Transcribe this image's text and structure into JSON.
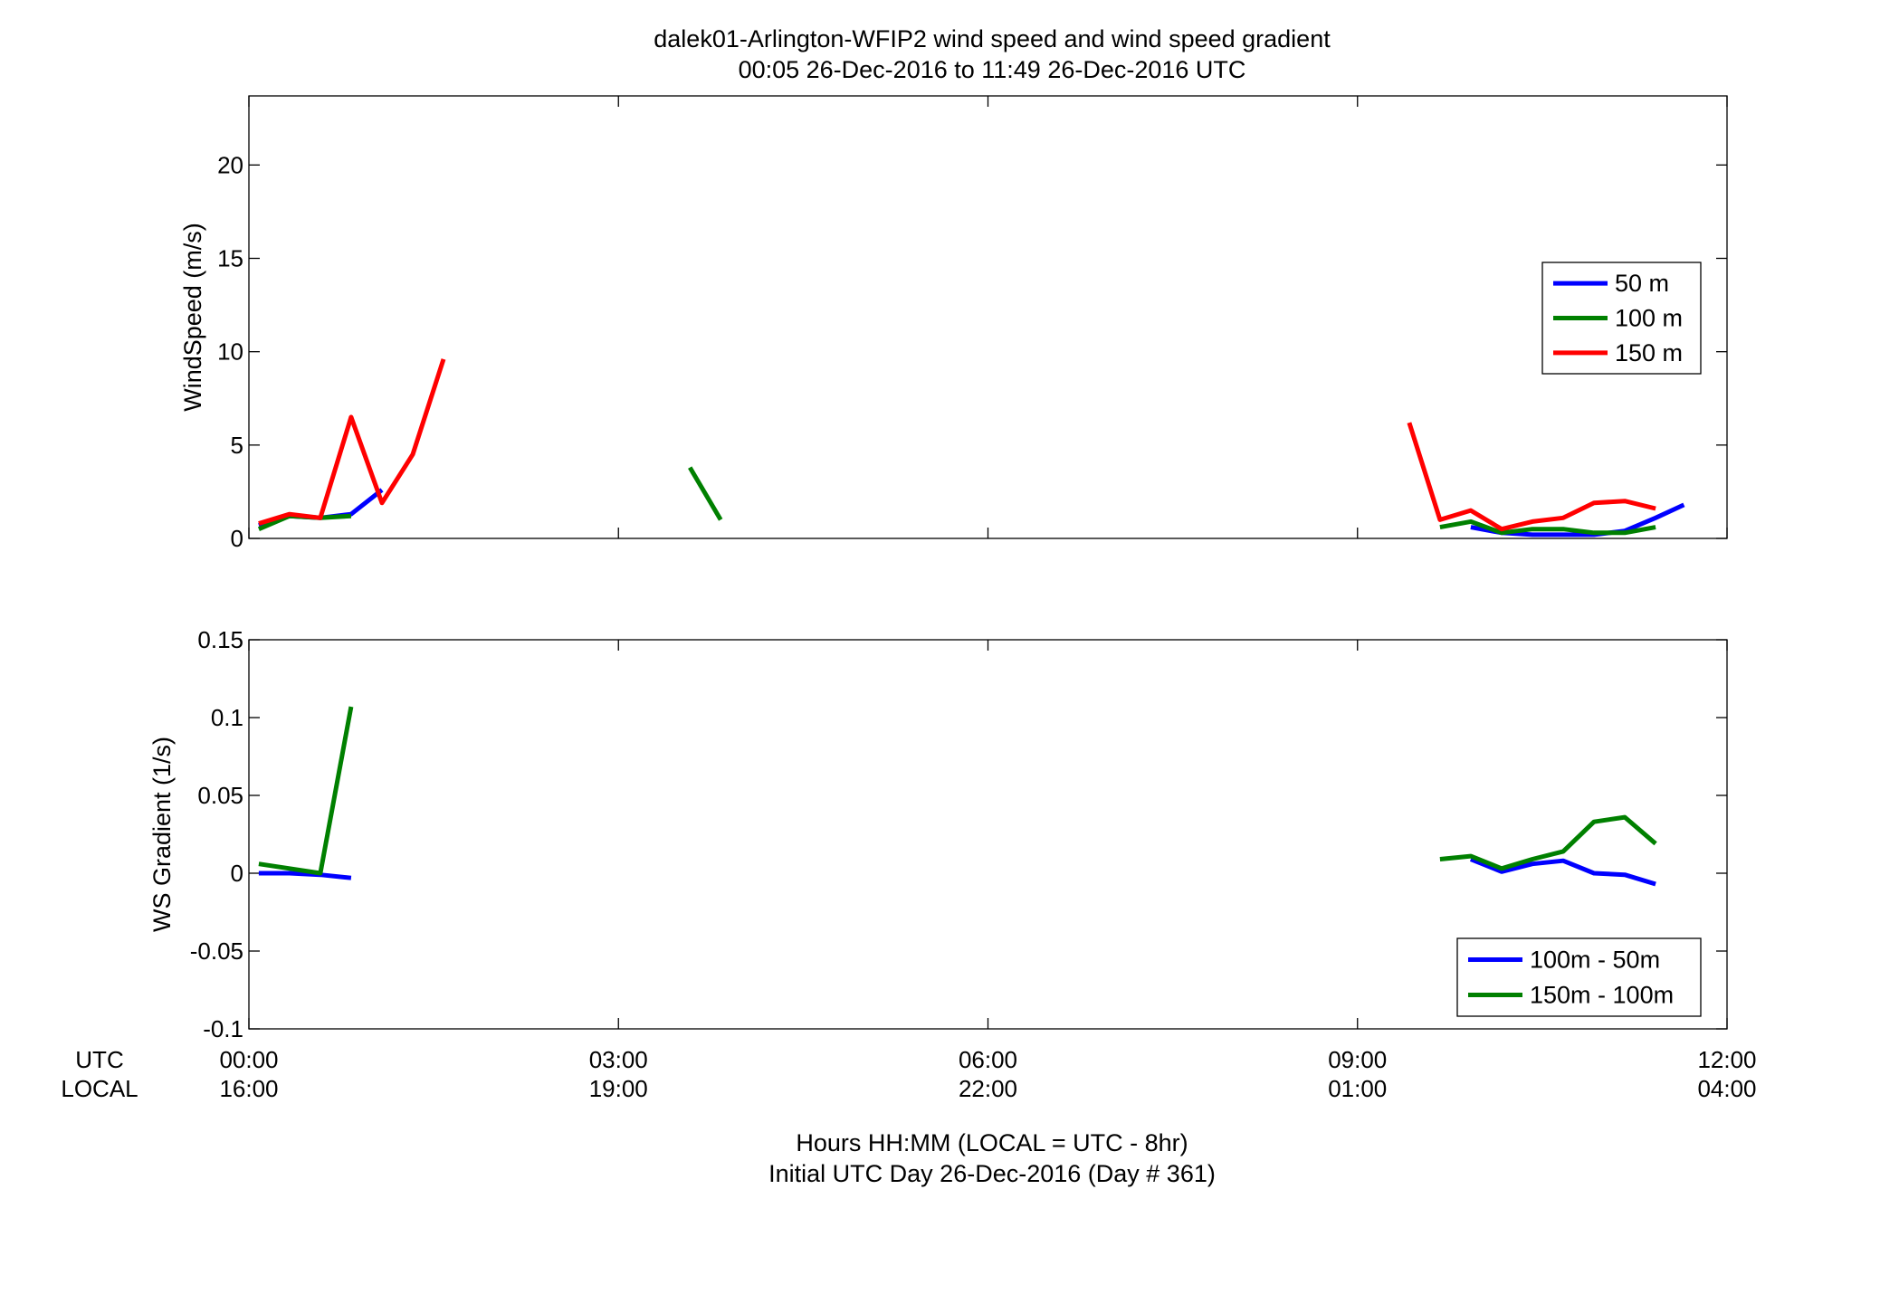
{
  "figure": {
    "title_line1": "dalek01-Arlington-WFIP2  wind speed and wind speed gradient",
    "title_line2": "00:05 26-Dec-2016 to 11:49 26-Dec-2016  UTC",
    "xlabel_line1": "Hours HH:MM  (LOCAL = UTC - 8hr)",
    "xlabel_line2": "Initial UTC Day 26-Dec-2016 (Day # 361)",
    "utc_row_label": "UTC",
    "local_row_label": "LOCAL"
  },
  "chart_data": [
    {
      "type": "line",
      "ylabel": "WindSpeed (m/s)",
      "xlim": [
        0,
        12
      ],
      "ylim": [
        0,
        23.7
      ],
      "x_ticks": [
        0,
        3,
        6,
        9,
        12
      ],
      "x_tick_labels_utc": [
        "00:00",
        "03:00",
        "06:00",
        "09:00",
        "12:00"
      ],
      "x_tick_labels_local": [
        "16:00",
        "19:00",
        "22:00",
        "01:00",
        "04:00"
      ],
      "y_ticks": [
        0,
        5,
        10,
        15,
        20
      ],
      "y_tick_labels": [
        "0",
        "5",
        "10",
        "15",
        "20"
      ],
      "grid": false,
      "legend_position": "right",
      "series": [
        {
          "name": "50 m",
          "color": "#0000ff",
          "segments": [
            [
              [
                0.08,
                0.7
              ],
              [
                0.33,
                1.2
              ],
              [
                0.58,
                1.1
              ],
              [
                0.83,
                1.3
              ],
              [
                1.08,
                2.6
              ]
            ],
            [
              [
                9.92,
                0.6
              ],
              [
                10.17,
                0.3
              ],
              [
                10.42,
                0.2
              ],
              [
                10.67,
                0.2
              ],
              [
                10.92,
                0.2
              ],
              [
                11.17,
                0.4
              ],
              [
                11.42,
                1.1
              ],
              [
                11.65,
                1.8
              ]
            ]
          ]
        },
        {
          "name": "100 m",
          "color": "#008000",
          "segments": [
            [
              [
                0.08,
                0.5
              ],
              [
                0.33,
                1.2
              ],
              [
                0.58,
                1.1
              ],
              [
                0.83,
                1.2
              ]
            ],
            [
              [
                3.58,
                3.8
              ],
              [
                3.83,
                1.0
              ]
            ],
            [
              [
                9.67,
                0.6
              ],
              [
                9.92,
                0.9
              ],
              [
                10.17,
                0.3
              ],
              [
                10.42,
                0.5
              ],
              [
                10.67,
                0.5
              ],
              [
                10.92,
                0.3
              ],
              [
                11.17,
                0.3
              ],
              [
                11.42,
                0.6
              ]
            ]
          ]
        },
        {
          "name": "150 m",
          "color": "#ff0000",
          "segments": [
            [
              [
                0.08,
                0.8
              ],
              [
                0.33,
                1.3
              ],
              [
                0.58,
                1.1
              ],
              [
                0.83,
                6.5
              ],
              [
                1.08,
                1.9
              ],
              [
                1.33,
                4.5
              ],
              [
                1.58,
                9.6
              ]
            ],
            [
              [
                9.42,
                6.2
              ],
              [
                9.67,
                1.0
              ],
              [
                9.92,
                1.5
              ],
              [
                10.17,
                0.5
              ],
              [
                10.42,
                0.9
              ],
              [
                10.67,
                1.1
              ],
              [
                10.92,
                1.9
              ],
              [
                11.17,
                2.0
              ],
              [
                11.42,
                1.6
              ]
            ]
          ]
        }
      ]
    },
    {
      "type": "line",
      "ylabel": "WS Gradient (1/s)",
      "xlim": [
        0,
        12
      ],
      "ylim": [
        -0.1,
        0.15
      ],
      "x_ticks": [
        0,
        3,
        6,
        9,
        12
      ],
      "y_ticks": [
        -0.1,
        -0.05,
        0,
        0.05,
        0.1,
        0.15
      ],
      "y_tick_labels": [
        "-0.1",
        "-0.05",
        "0",
        "0.05",
        "0.1",
        "0.15"
      ],
      "grid": false,
      "legend_position": "bottom-right",
      "series": [
        {
          "name": "100m - 50m",
          "color": "#0000ff",
          "segments": [
            [
              [
                0.08,
                0.0
              ],
              [
                0.33,
                0.0
              ],
              [
                0.58,
                -0.001
              ],
              [
                0.83,
                -0.003
              ]
            ],
            [
              [
                9.92,
                0.009
              ],
              [
                10.17,
                0.001
              ],
              [
                10.42,
                0.006
              ],
              [
                10.67,
                0.008
              ],
              [
                10.92,
                0.0
              ],
              [
                11.17,
                -0.001
              ],
              [
                11.42,
                -0.007
              ]
            ]
          ]
        },
        {
          "name": "150m - 100m",
          "color": "#008000",
          "segments": [
            [
              [
                0.08,
                0.006
              ],
              [
                0.33,
                0.003
              ],
              [
                0.58,
                0.0
              ],
              [
                0.83,
                0.107
              ]
            ],
            [
              [
                9.67,
                0.009
              ],
              [
                9.92,
                0.011
              ],
              [
                10.17,
                0.003
              ],
              [
                10.42,
                0.009
              ],
              [
                10.67,
                0.014
              ],
              [
                10.92,
                0.033
              ],
              [
                11.17,
                0.036
              ],
              [
                11.42,
                0.019
              ]
            ]
          ]
        }
      ]
    }
  ]
}
